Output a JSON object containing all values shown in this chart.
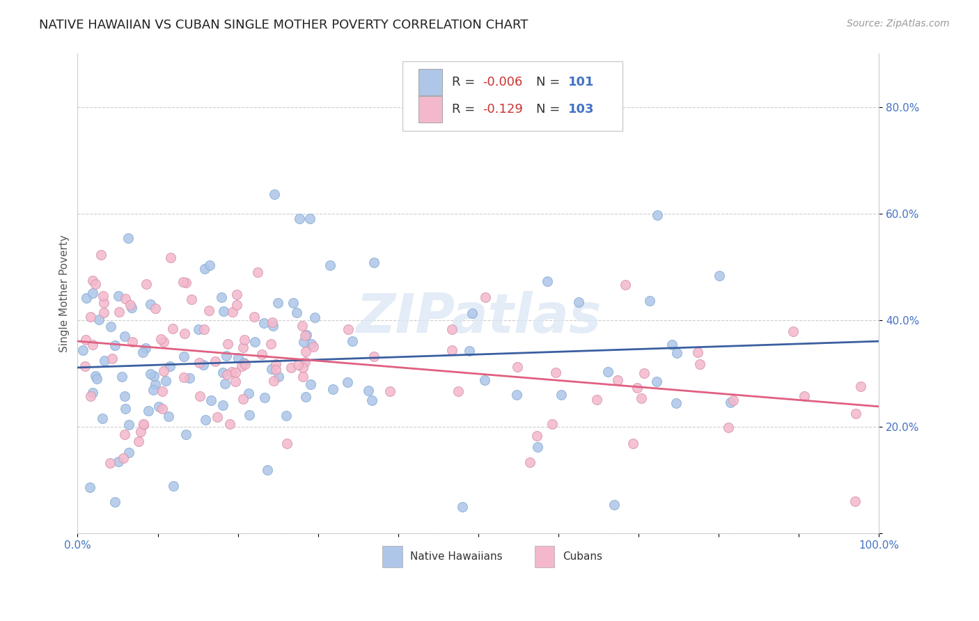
{
  "title": "NATIVE HAWAIIAN VS CUBAN SINGLE MOTHER POVERTY CORRELATION CHART",
  "source": "Source: ZipAtlas.com",
  "ylabel": "Single Mother Poverty",
  "xlabel": "",
  "xlim": [
    0.0,
    1.0
  ],
  "ylim": [
    0.0,
    0.9
  ],
  "x_ticks": [
    0.0,
    0.1,
    0.2,
    0.3,
    0.4,
    0.5,
    0.6,
    0.7,
    0.8,
    0.9,
    1.0
  ],
  "y_ticks": [
    0.0,
    0.2,
    0.4,
    0.6,
    0.8
  ],
  "y_tick_labels_right": [
    "",
    "20.0%",
    "40.0%",
    "60.0%",
    "80.0%"
  ],
  "x_tick_labels": [
    "0.0%",
    "",
    "",
    "",
    "",
    "",
    "",
    "",
    "",
    "",
    "100.0%"
  ],
  "nh_R": -0.006,
  "nh_N": 101,
  "cu_R": -0.129,
  "cu_N": 103,
  "nh_color": "#aec6e8",
  "cu_color": "#f4b8cc",
  "nh_line_color": "#3a5fa0",
  "cu_line_color": "#e06080",
  "watermark": "ZIPatlas",
  "background_color": "#ffffff",
  "title_fontsize": 13,
  "legend_label_nh": "Native Hawaiians",
  "legend_label_cu": "Cubans"
}
